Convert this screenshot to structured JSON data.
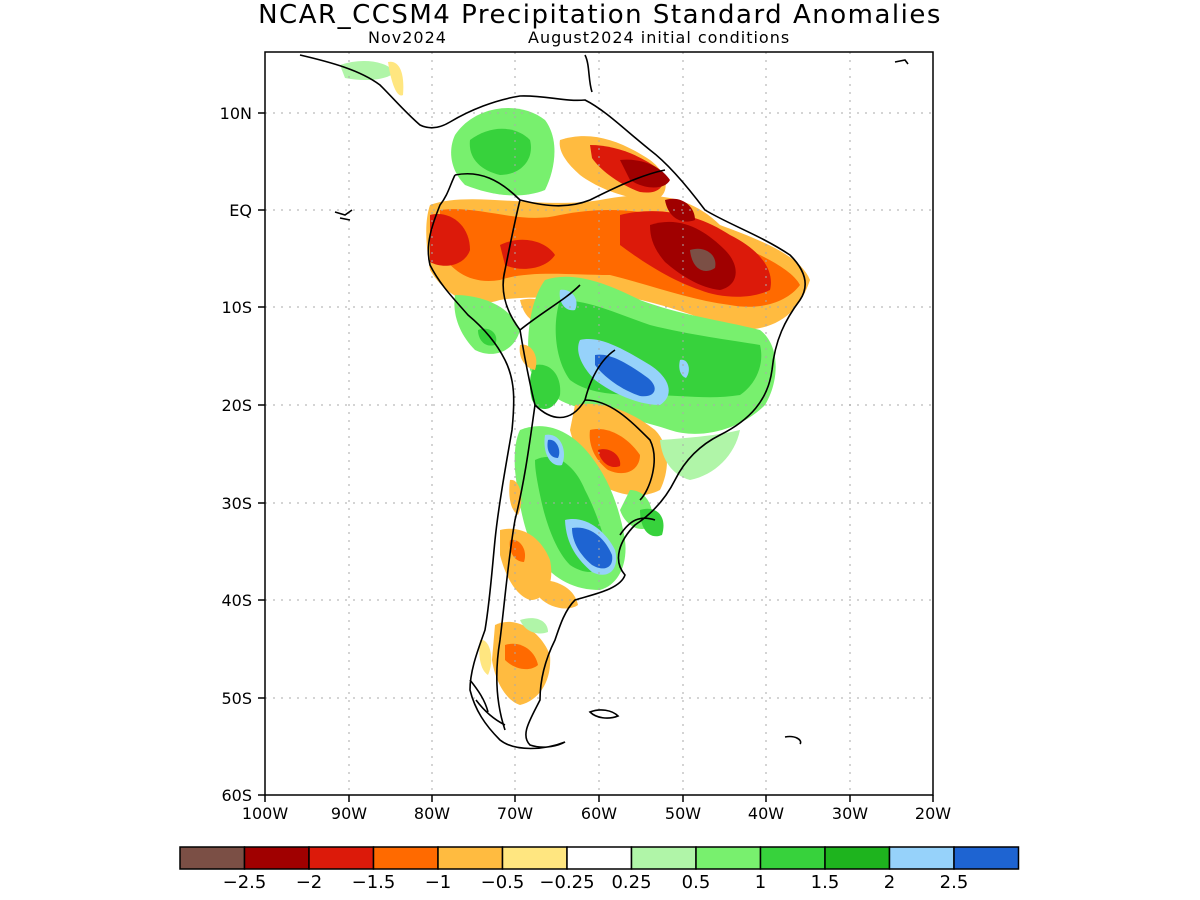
{
  "title": "NCAR_CCSM4 Precipitation Standard Anomalies",
  "subtitle_left": "Nov2024",
  "subtitle_right": "August2024 initial conditions",
  "lat_ticks": [
    "10N",
    "EQ",
    "10S",
    "20S",
    "30S",
    "40S",
    "50S",
    "60S"
  ],
  "lon_ticks": [
    "100W",
    "90W",
    "80W",
    "70W",
    "60W",
    "50W",
    "40W",
    "30W",
    "20W"
  ],
  "colorbar": {
    "colors": [
      "#7b4f45",
      "#a00000",
      "#dc1a0a",
      "#ff6a00",
      "#ffbb40",
      "#ffe680",
      "#ffffff",
      "#b0f5a8",
      "#78f06e",
      "#37d23c",
      "#1eb41e",
      "#96d2fa",
      "#1e64d2"
    ],
    "labels": [
      "−2.5",
      "−2",
      "−1.5",
      "−1",
      "−0.5",
      "−0.25",
      "0.25",
      "0.5",
      "1",
      "1.5",
      "2",
      "2.5"
    ]
  }
}
